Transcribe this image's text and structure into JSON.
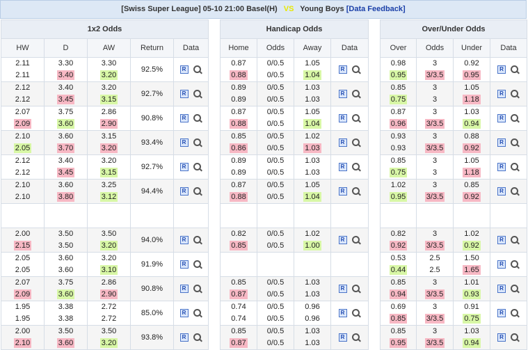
{
  "header": {
    "league": "[Swiss Super League]",
    "datetime": "05-10 21:00",
    "home": "Basel(H)",
    "vs": "VS",
    "away": "Young Boys",
    "feedback": "[Data Feedback]"
  },
  "x12": {
    "title": "1x2 Odds",
    "cols": [
      "HW",
      "D",
      "AW",
      "Return",
      "Data"
    ],
    "rows": [
      {
        "blank": false,
        "hw": [
          "2.11",
          "2.11"
        ],
        "d": [
          "3.30",
          "3.40"
        ],
        "aw": [
          "3.30",
          "3.20"
        ],
        "ret": "92.5%"
      },
      {
        "blank": false,
        "hw": [
          "2.12",
          "2.12"
        ],
        "d": [
          "3.40",
          "3.45"
        ],
        "aw": [
          "3.20",
          "3.15"
        ],
        "ret": "92.7%"
      },
      {
        "blank": false,
        "hw": [
          "2.07",
          "2.09"
        ],
        "d": [
          "3.75",
          "3.60"
        ],
        "aw": [
          "2.86",
          "2.90"
        ],
        "ret": "90.8%"
      },
      {
        "blank": false,
        "hw": [
          "2.10",
          "2.05"
        ],
        "d": [
          "3.60",
          "3.70"
        ],
        "aw": [
          "3.15",
          "3.20"
        ],
        "ret": "93.4%"
      },
      {
        "blank": false,
        "hw": [
          "2.12",
          "2.12"
        ],
        "d": [
          "3.40",
          "3.45"
        ],
        "aw": [
          "3.20",
          "3.15"
        ],
        "ret": "92.7%"
      },
      {
        "blank": false,
        "hw": [
          "2.10",
          "2.10"
        ],
        "d": [
          "3.60",
          "3.80"
        ],
        "aw": [
          "3.25",
          "3.12"
        ],
        "ret": "94.4%"
      },
      {
        "blank": true
      },
      {
        "blank": false,
        "hw": [
          "2.00",
          "2.15"
        ],
        "d": [
          "3.50",
          "3.50"
        ],
        "aw": [
          "3.50",
          "3.20"
        ],
        "ret": "94.0%"
      },
      {
        "blank": false,
        "hw": [
          "2.05",
          "2.05"
        ],
        "d": [
          "3.60",
          "3.60"
        ],
        "aw": [
          "3.20",
          "3.10"
        ],
        "ret": "91.9%"
      },
      {
        "blank": false,
        "hw": [
          "2.07",
          "2.09"
        ],
        "d": [
          "3.75",
          "3.60"
        ],
        "aw": [
          "2.86",
          "2.90"
        ],
        "ret": "90.8%"
      },
      {
        "blank": false,
        "hw": [
          "1.95",
          "1.95"
        ],
        "d": [
          "3.38",
          "3.38"
        ],
        "aw": [
          "2.72",
          "2.72"
        ],
        "ret": "85.0%"
      },
      {
        "blank": false,
        "hw": [
          "2.00",
          "2.10"
        ],
        "d": [
          "3.50",
          "3.60"
        ],
        "aw": [
          "3.50",
          "3.20"
        ],
        "ret": "93.8%"
      }
    ]
  },
  "handicap": {
    "title": "Handicap Odds",
    "cols": [
      "Home",
      "Odds",
      "Away",
      "Data"
    ],
    "rows": [
      {
        "blank": false,
        "home": [
          "0.87",
          "0.88"
        ],
        "odds": [
          "0/0.5",
          "0/0.5"
        ],
        "away": [
          "1.05",
          "1.04"
        ]
      },
      {
        "blank": false,
        "home": [
          "0.89",
          "0.89"
        ],
        "odds": [
          "0/0.5",
          "0/0.5"
        ],
        "away": [
          "1.03",
          "1.03"
        ]
      },
      {
        "blank": false,
        "home": [
          "0.87",
          "0.88"
        ],
        "odds": [
          "0/0.5",
          "0/0.5"
        ],
        "away": [
          "1.05",
          "1.04"
        ]
      },
      {
        "blank": false,
        "home": [
          "0.85",
          "0.86"
        ],
        "odds": [
          "0/0.5",
          "0/0.5"
        ],
        "away": [
          "1.02",
          "1.03"
        ]
      },
      {
        "blank": false,
        "home": [
          "0.89",
          "0.89"
        ],
        "odds": [
          "0/0.5",
          "0/0.5"
        ],
        "away": [
          "1.03",
          "1.03"
        ]
      },
      {
        "blank": false,
        "home": [
          "0.87",
          "0.88"
        ],
        "odds": [
          "0/0.5",
          "0/0.5"
        ],
        "away": [
          "1.05",
          "1.04"
        ]
      },
      {
        "blank": true
      },
      {
        "blank": false,
        "home": [
          "0.82",
          "0.85"
        ],
        "odds": [
          "0/0.5",
          "0/0.5"
        ],
        "away": [
          "1.02",
          "1.00"
        ]
      },
      {
        "blank": true
      },
      {
        "blank": false,
        "home": [
          "0.85",
          "0.87"
        ],
        "odds": [
          "0/0.5",
          "0/0.5"
        ],
        "away": [
          "1.03",
          "1.03"
        ]
      },
      {
        "blank": false,
        "home": [
          "0.74",
          "0.74"
        ],
        "odds": [
          "0/0.5",
          "0/0.5"
        ],
        "away": [
          "0.96",
          "0.96"
        ]
      },
      {
        "blank": false,
        "home": [
          "0.85",
          "0.87"
        ],
        "odds": [
          "0/0.5",
          "0/0.5"
        ],
        "away": [
          "1.03",
          "1.03"
        ]
      }
    ]
  },
  "ou": {
    "title": "Over/Under Odds",
    "cols": [
      "Over",
      "Odds",
      "Under",
      "Data"
    ],
    "rows": [
      {
        "blank": false,
        "over": [
          "0.98",
          "0.95"
        ],
        "odds": [
          "3",
          "3/3.5"
        ],
        "under": [
          "0.92",
          "0.95"
        ]
      },
      {
        "blank": false,
        "over": [
          "0.85",
          "0.75"
        ],
        "odds": [
          "3",
          "3"
        ],
        "under": [
          "1.05",
          "1.18"
        ]
      },
      {
        "blank": false,
        "over": [
          "0.87",
          "0.96"
        ],
        "odds": [
          "3",
          "3/3.5"
        ],
        "under": [
          "1.03",
          "0.94"
        ]
      },
      {
        "blank": false,
        "over": [
          "0.93",
          "0.93"
        ],
        "odds": [
          "3",
          "3/3.5"
        ],
        "under": [
          "0.88",
          "0.92"
        ]
      },
      {
        "blank": false,
        "over": [
          "0.85",
          "0.75"
        ],
        "odds": [
          "3",
          "3"
        ],
        "under": [
          "1.05",
          "1.18"
        ]
      },
      {
        "blank": false,
        "over": [
          "1.02",
          "0.95"
        ],
        "odds": [
          "3",
          "3/3.5"
        ],
        "under": [
          "0.85",
          "0.92"
        ]
      },
      {
        "blank": true
      },
      {
        "blank": false,
        "over": [
          "0.82",
          "0.92"
        ],
        "odds": [
          "3",
          "3/3.5"
        ],
        "under": [
          "1.02",
          "0.92"
        ]
      },
      {
        "blank": false,
        "over": [
          "0.53",
          "0.44"
        ],
        "odds": [
          "2.5",
          "2.5"
        ],
        "under": [
          "1.50",
          "1.65"
        ]
      },
      {
        "blank": false,
        "over": [
          "0.85",
          "0.94"
        ],
        "odds": [
          "3",
          "3/3.5"
        ],
        "under": [
          "1.01",
          "0.93"
        ]
      },
      {
        "blank": false,
        "over": [
          "0.69",
          "0.85"
        ],
        "odds": [
          "3",
          "3/3.5"
        ],
        "under": [
          "0.91",
          "0.75"
        ]
      },
      {
        "blank": false,
        "over": [
          "0.85",
          "0.95"
        ],
        "odds": [
          "3",
          "3/3.5"
        ],
        "under": [
          "1.03",
          "0.94"
        ]
      }
    ]
  },
  "data_icons": {
    "r_label": "R",
    "r_icon": "r-report-icon",
    "search_icon": "magnifier-icon"
  },
  "colors": {
    "up": "#f7b8c4",
    "down": "#d8f7a6",
    "header_bg": "#dde8f5"
  }
}
